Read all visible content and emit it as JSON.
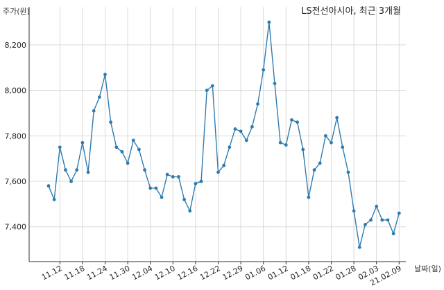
{
  "chart_data": {
    "type": "line",
    "title": "LS전선아시아, 최근 3개월",
    "ylabel": "주가(원)",
    "xlabel": "날짜(일)",
    "ylim": [
      7250,
      8370
    ],
    "y_ticks": [
      7400,
      7600,
      7800,
      8000,
      8200
    ],
    "y_tick_labels": [
      "7,400",
      "7,600",
      "7,800",
      "8,000",
      "8,200"
    ],
    "x_tick_labels": [
      "11.12",
      "11.18",
      "11.24",
      "11.30",
      "12.04",
      "12.10",
      "12.16",
      "12.22",
      "12.29",
      "01.06",
      "01.12",
      "01.18",
      "01.22",
      "01.28",
      "02.03",
      "21.02.09"
    ],
    "x_tick_index": [
      2,
      6,
      10,
      14,
      18,
      22,
      26,
      30,
      34,
      38,
      42,
      46,
      50,
      54,
      58,
      62
    ],
    "color": "#2e7bb0",
    "series": [
      {
        "values": [
          7580,
          7520,
          7750,
          7650,
          7600,
          7650,
          7770,
          7640,
          7910,
          7970,
          8070,
          7860,
          7750,
          7730,
          7680,
          7780,
          7740,
          7650,
          7570,
          7570,
          7530,
          7630,
          7620,
          7620,
          7520,
          7470,
          7590,
          7600,
          8000,
          8020,
          7640,
          7670,
          7750,
          7830,
          7820,
          7780,
          7840,
          7940,
          8090,
          8300,
          8030,
          7770,
          7760,
          7870,
          7860,
          7740,
          7530,
          7650,
          7680,
          7800,
          7770,
          7880,
          7750,
          7640,
          7470,
          7310,
          7410,
          7430,
          7490,
          7430,
          7430,
          7370,
          7460
        ]
      }
    ]
  }
}
